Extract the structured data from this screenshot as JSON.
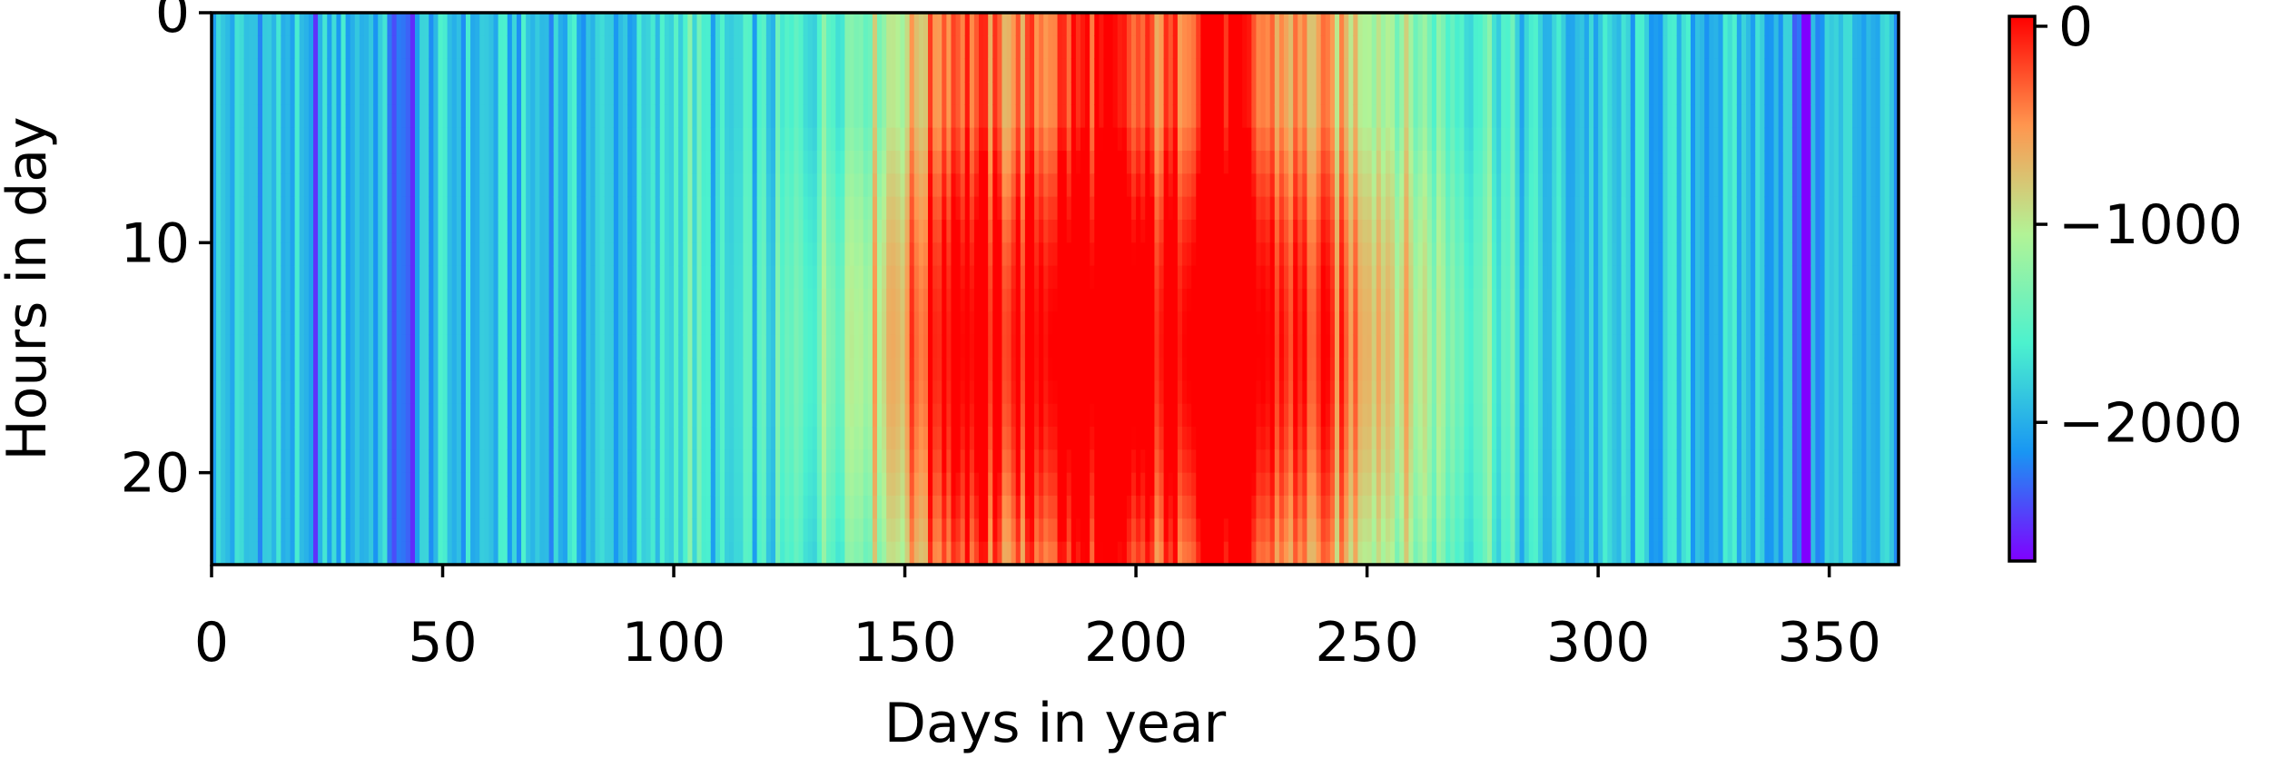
{
  "chart_data": {
    "type": "heatmap",
    "title": "",
    "xlabel": "Days in year",
    "ylabel": "Hours in day",
    "x_ticks": [
      0,
      50,
      100,
      150,
      200,
      250,
      300,
      350
    ],
    "y_ticks": [
      0,
      10,
      20
    ],
    "xlim": [
      0,
      365
    ],
    "ylim": [
      24,
      0
    ],
    "x_range": [
      0,
      364
    ],
    "y_range": [
      0,
      23
    ],
    "grid": false,
    "colormap": "rainbow",
    "colorbar": {
      "range": [
        -2700,
        50
      ],
      "ticks": [
        0,
        -1000,
        -2000
      ],
      "tick_labels": [
        "0",
        "−1000",
        "−2000"
      ],
      "colors": [
        "#8000ff",
        "#1996f3",
        "#4cf2ce",
        "#b2f396",
        "#ff964f",
        "#ff0000"
      ]
    },
    "summary": {
      "days_1_120": "mostly -1500 to -2200 with deep minima near day 40 and day 343",
      "days_120_260": "high values, peaking near 0 around days 155-165, 180-200 and 212-222",
      "days_260_365": "declining back to about -1300 to -2200",
      "hour_profile": "values in summer months are higher in midday hours 10-20"
    }
  }
}
